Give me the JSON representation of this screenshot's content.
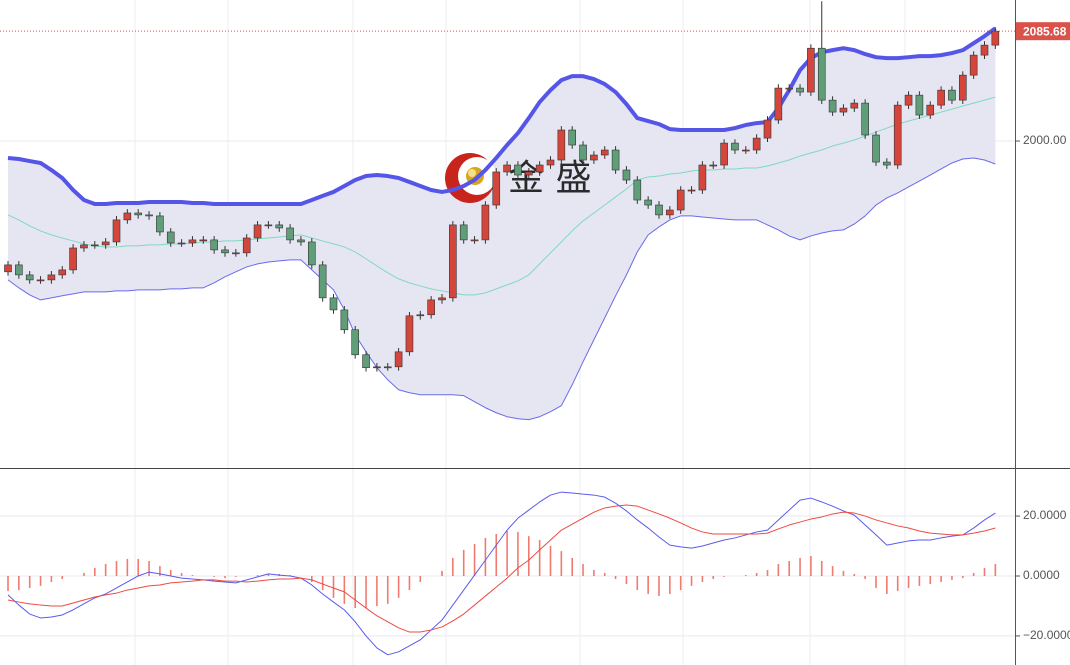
{
  "chart_data": [
    {
      "type": "candlestick",
      "open": [
        1898.0,
        1903.4,
        1895.6,
        1891.7,
        1891.7,
        1895.6,
        1899.5,
        1916.6,
        1919.0,
        1919.0,
        1921.3,
        1938.5,
        1943.9,
        1942.4,
        1941.6,
        1929.1,
        1920.5,
        1920.5,
        1922.9,
        1922.9,
        1915.1,
        1912.8,
        1912.8,
        1924.4,
        1934.6,
        1934.6,
        1932.2,
        1922.9,
        1921.3,
        1903.4,
        1877.7,
        1868.3,
        1852.8,
        1833.3,
        1823.2,
        1823.9,
        1823.9,
        1835.6,
        1863.7,
        1864.5,
        1876.1,
        1877.7,
        1934.6,
        1922.9,
        1922.9,
        1950.1,
        1975.9,
        1981.3,
        1973.5,
        1975.9,
        1981.3,
        1985.2,
        2008.6,
        1996.9,
        1985.2,
        1989.1,
        1993.0,
        1977.4,
        1969.6,
        1954.0,
        1950.1,
        1942.4,
        1946.2,
        1961.8,
        1961.8,
        1981.3,
        1981.3,
        1998.4,
        1993.0,
        1993.0,
        2002.3,
        2016.4,
        2041.3,
        2041.3,
        2038.2,
        2072.4,
        2031.9,
        2022.6,
        2025.7,
        2029.6,
        2004.7,
        1983.6,
        1981.3,
        2028.0,
        2035.8,
        2020.3,
        2028.0,
        2039.7,
        2031.9,
        2051.4,
        2067.0,
        2074.8
      ],
      "high": [
        1906.4,
        1906.4,
        1898.6,
        1894.7,
        1898.6,
        1902.5,
        1919.6,
        1922.0,
        1922.0,
        1924.3,
        1941.5,
        1946.9,
        1946.9,
        1945.4,
        1944.6,
        1932.1,
        1923.5,
        1925.9,
        1925.9,
        1925.9,
        1918.1,
        1915.8,
        1927.4,
        1937.6,
        1937.6,
        1937.6,
        1935.2,
        1925.9,
        1924.3,
        1906.4,
        1880.7,
        1871.3,
        1855.8,
        1836.3,
        1826.9,
        1826.9,
        1838.6,
        1866.7,
        1867.5,
        1879.1,
        1880.7,
        1937.6,
        1937.6,
        1925.9,
        1953.1,
        1978.9,
        1984.3,
        1984.3,
        1978.9,
        1984.3,
        1988.2,
        2011.6,
        2011.6,
        1999.9,
        1992.1,
        1996.0,
        1996.0,
        1980.4,
        1972.6,
        1957.0,
        1953.1,
        1949.2,
        1964.8,
        1964.8,
        1984.3,
        1984.3,
        2001.4,
        2001.4,
        1996.0,
        2005.3,
        2019.4,
        2044.3,
        2044.3,
        2044.3,
        2075.4,
        2109.0,
        2034.9,
        2028.7,
        2032.6,
        2032.6,
        2007.7,
        1986.6,
        2031.0,
        2038.8,
        2038.8,
        2031.0,
        2042.7,
        2042.7,
        2054.4,
        2070.0,
        2077.8,
        2088.7
      ],
      "low": [
        1895.0,
        1892.6,
        1888.7,
        1888.7,
        1888.7,
        1892.6,
        1896.5,
        1913.6,
        1916.0,
        1916.0,
        1918.3,
        1935.5,
        1939.4,
        1938.6,
        1926.1,
        1917.5,
        1917.5,
        1917.5,
        1919.9,
        1912.1,
        1909.8,
        1909.8,
        1909.8,
        1921.4,
        1931.6,
        1929.2,
        1919.9,
        1918.3,
        1900.4,
        1874.7,
        1865.3,
        1849.8,
        1830.3,
        1820.2,
        1820.2,
        1820.9,
        1820.9,
        1832.6,
        1860.7,
        1861.5,
        1873.1,
        1874.7,
        1919.9,
        1919.9,
        1919.9,
        1947.1,
        1972.9,
        1970.5,
        1970.5,
        1972.9,
        1978.3,
        1982.2,
        1993.9,
        1982.2,
        1982.2,
        1986.1,
        1974.4,
        1966.6,
        1951.0,
        1947.1,
        1939.4,
        1939.4,
        1943.2,
        1958.8,
        1958.8,
        1978.3,
        1978.3,
        1990.0,
        1990.0,
        1990.0,
        1999.3,
        2013.4,
        2038.3,
        2035.2,
        2035.2,
        2028.9,
        2019.6,
        2019.6,
        2022.7,
        2001.7,
        1980.6,
        1978.3,
        1978.3,
        2025.0,
        2017.3,
        2017.3,
        2025.0,
        2028.9,
        2028.9,
        2048.4,
        2064.0,
        2071.8
      ],
      "close": [
        1903.4,
        1895.6,
        1891.7,
        1891.7,
        1895.6,
        1899.5,
        1916.6,
        1919.0,
        1919.0,
        1921.3,
        1938.5,
        1943.9,
        1942.4,
        1941.6,
        1929.1,
        1920.5,
        1920.5,
        1922.9,
        1922.9,
        1915.1,
        1912.8,
        1912.8,
        1924.4,
        1934.6,
        1934.6,
        1932.2,
        1922.9,
        1921.3,
        1903.4,
        1877.7,
        1868.3,
        1852.8,
        1833.3,
        1823.2,
        1823.9,
        1823.9,
        1835.6,
        1863.7,
        1864.5,
        1876.1,
        1877.7,
        1934.6,
        1922.9,
        1922.9,
        1950.1,
        1975.9,
        1981.3,
        1973.5,
        1975.9,
        1981.3,
        1985.2,
        2008.6,
        1996.9,
        1985.2,
        1989.1,
        1993.0,
        1977.4,
        1969.6,
        1954.0,
        1950.1,
        1942.4,
        1946.2,
        1961.8,
        1961.8,
        1981.3,
        1981.3,
        1998.4,
        1993.0,
        1993.0,
        2002.3,
        2016.4,
        2041.3,
        2041.3,
        2038.2,
        2072.4,
        2031.9,
        2022.6,
        2025.7,
        2029.6,
        2004.7,
        1983.6,
        1981.3,
        2028.0,
        2035.8,
        2020.3,
        2028.0,
        2039.7,
        2031.9,
        2051.4,
        2067.0,
        2074.8,
        2085.68
      ],
      "up_color": "#d4463c",
      "down_color": "#5f9e78",
      "overlays": [
        {
          "color": "#5555e8",
          "width": 4,
          "values": [
            1986.8,
            1986.0,
            1984.4,
            1982.9,
            1977.4,
            1971.2,
            1961.8,
            1954.0,
            1950.9,
            1950.9,
            1951.7,
            1951.7,
            1951.7,
            1952.5,
            1952.5,
            1952.5,
            1952.5,
            1951.7,
            1951.7,
            1950.9,
            1950.9,
            1950.9,
            1950.9,
            1950.9,
            1950.9,
            1950.9,
            1950.9,
            1950.9,
            1954.0,
            1957.2,
            1960.3,
            1964.9,
            1969.6,
            1972.7,
            1973.5,
            1972.7,
            1971.2,
            1968.1,
            1964.9,
            1961.8,
            1960.3,
            1961.8,
            1964.9,
            1969.6,
            1977.4,
            1986.8,
            1996.9,
            2006.2,
            2017.9,
            2030.4,
            2039.7,
            2047.5,
            2050.6,
            2050.6,
            2048.3,
            2044.4,
            2038.2,
            2028.8,
            2017.9,
            2015.6,
            2013.2,
            2009.3,
            2008.6,
            2008.6,
            2008.6,
            2008.6,
            2008.6,
            2010.1,
            2012.5,
            2014.0,
            2014.8,
            2025.7,
            2039.7,
            2055.3,
            2064.7,
            2069.3,
            2070.9,
            2072.4,
            2070.9,
            2067.8,
            2065.4,
            2064.7,
            2064.7,
            2065.4,
            2066.2,
            2066.2,
            2067.0,
            2068.6,
            2070.9,
            2076.3,
            2081.8,
            2088.0
          ]
        },
        {
          "color": "#7fd8c2",
          "width": 1,
          "values": [
            1942.4,
            1938.5,
            1933.8,
            1929.9,
            1926.8,
            1924.4,
            1922.1,
            1919.8,
            1918.2,
            1917.4,
            1917.4,
            1918.2,
            1918.2,
            1919.0,
            1919.0,
            1919.8,
            1919.8,
            1920.5,
            1921.3,
            1921.3,
            1922.1,
            1922.1,
            1922.9,
            1923.7,
            1924.4,
            1925.2,
            1926.0,
            1926.8,
            1924.4,
            1922.1,
            1919.8,
            1917.4,
            1913.5,
            1908.1,
            1902.6,
            1897.2,
            1892.5,
            1889.4,
            1887.0,
            1884.7,
            1883.1,
            1881.6,
            1880.0,
            1880.0,
            1881.6,
            1884.7,
            1887.8,
            1890.9,
            1895.6,
            1904.2,
            1912.8,
            1921.3,
            1929.9,
            1937.7,
            1943.9,
            1950.1,
            1956.4,
            1962.6,
            1969.6,
            1972.0,
            1972.7,
            1974.3,
            1975.1,
            1976.6,
            1977.4,
            1977.4,
            1978.2,
            1978.2,
            1979.0,
            1979.0,
            1980.5,
            1982.9,
            1985.2,
            1988.3,
            1990.7,
            1993.0,
            1996.1,
            1998.4,
            2000.8,
            2003.9,
            2007.0,
            2010.1,
            2013.2,
            2015.6,
            2017.9,
            2020.3,
            2022.6,
            2024.9,
            2027.3,
            2029.6,
            2031.9,
            2034.3
          ]
        },
        {
          "color": "#6a6aec",
          "width": 1,
          "values": [
            1891.7,
            1885.5,
            1880.0,
            1876.1,
            1877.7,
            1879.3,
            1880.8,
            1882.4,
            1882.4,
            1882.4,
            1883.1,
            1883.1,
            1883.9,
            1883.9,
            1883.9,
            1884.7,
            1884.7,
            1885.5,
            1885.5,
            1889.4,
            1894.1,
            1898.0,
            1901.8,
            1904.2,
            1905.7,
            1906.5,
            1907.3,
            1907.3,
            1899.5,
            1891.7,
            1883.9,
            1868.3,
            1848.9,
            1835.6,
            1823.2,
            1813.8,
            1806.0,
            1803.7,
            1802.1,
            1802.1,
            1802.1,
            1802.1,
            1801.4,
            1796.7,
            1792.0,
            1788.1,
            1785.0,
            1783.4,
            1782.7,
            1785.0,
            1788.9,
            1793.6,
            1809.9,
            1827.8,
            1845.0,
            1862.1,
            1879.3,
            1895.6,
            1913.5,
            1926.8,
            1933.0,
            1938.5,
            1941.6,
            1941.6,
            1940.8,
            1940.0,
            1939.2,
            1938.5,
            1938.5,
            1938.5,
            1934.6,
            1930.7,
            1926.0,
            1922.9,
            1926.0,
            1928.3,
            1929.9,
            1930.7,
            1935.3,
            1941.6,
            1950.1,
            1955.6,
            1959.5,
            1964.2,
            1968.8,
            1973.5,
            1978.2,
            1982.9,
            1986.0,
            1986.8,
            1985.2,
            1982.1
          ]
        }
      ],
      "band_fill": "#e6e6f3",
      "last_price_color": "#d9534a",
      "watermark": "金 盛",
      "ylim": [
        1745,
        2110
      ],
      "yticks": [
        {
          "value": 2000,
          "label": "2000.00"
        }
      ],
      "grid": true
    },
    {
      "type": "macd",
      "histogram": {
        "color": "#f07a70",
        "values": [
          -5.0,
          -4.7,
          -4.0,
          -3.3,
          -2.0,
          -1.0,
          0.0,
          1.0,
          2.7,
          4.0,
          5.0,
          5.7,
          5.7,
          5.0,
          3.3,
          2.0,
          1.0,
          0.3,
          0.0,
          -0.3,
          -0.7,
          -0.3,
          0.0,
          0.3,
          0.7,
          0.7,
          0.3,
          0.0,
          -2.0,
          -4.7,
          -7.3,
          -9.3,
          -10.7,
          -10.7,
          -10.0,
          -9.3,
          -7.3,
          -4.7,
          -2.0,
          0.0,
          1.7,
          6.0,
          8.7,
          10.7,
          12.7,
          14.0,
          15.0,
          14.7,
          13.3,
          12.0,
          10.0,
          8.3,
          6.0,
          4.0,
          2.0,
          1.0,
          -1.0,
          -2.7,
          -4.7,
          -6.0,
          -6.7,
          -6.0,
          -4.7,
          -3.3,
          -2.0,
          -1.0,
          -0.3,
          0.0,
          0.3,
          1.0,
          2.0,
          4.0,
          5.0,
          6.0,
          6.7,
          5.0,
          3.3,
          1.7,
          0.7,
          -1.0,
          -4.0,
          -6.0,
          -5.0,
          -4.0,
          -3.3,
          -2.7,
          -2.0,
          -1.3,
          -0.7,
          1.0,
          2.7,
          4.0
        ]
      },
      "series": [
        {
          "color": "#5a5aee",
          "values": [
            -6.3,
            -9.7,
            -12.7,
            -14.0,
            -13.7,
            -13.0,
            -11.3,
            -9.3,
            -7.3,
            -6.0,
            -4.0,
            -2.0,
            0.0,
            1.3,
            0.7,
            0.0,
            -0.7,
            -1.0,
            -1.3,
            -1.7,
            -2.0,
            -2.3,
            -1.3,
            -0.3,
            0.7,
            0.3,
            0.0,
            -0.7,
            -3.0,
            -6.0,
            -8.7,
            -11.3,
            -15.3,
            -20.0,
            -24.0,
            -26.3,
            -25.3,
            -23.3,
            -21.3,
            -18.0,
            -14.7,
            -9.7,
            -4.7,
            0.3,
            5.3,
            10.3,
            15.3,
            19.3,
            22.0,
            24.7,
            27.0,
            28.0,
            27.7,
            27.3,
            27.0,
            26.3,
            24.3,
            21.7,
            18.7,
            16.0,
            13.0,
            10.3,
            9.7,
            9.3,
            10.0,
            11.0,
            12.0,
            12.7,
            13.7,
            14.7,
            15.3,
            18.7,
            22.0,
            25.3,
            26.0,
            24.7,
            23.3,
            21.7,
            20.3,
            17.0,
            13.7,
            10.3,
            11.0,
            11.7,
            12.0,
            12.0,
            12.7,
            13.3,
            13.7,
            16.0,
            18.7,
            21.0
          ]
        },
        {
          "color": "#ee4a40",
          "values": [
            -8.0,
            -8.7,
            -9.3,
            -9.7,
            -10.0,
            -10.0,
            -9.0,
            -8.0,
            -7.0,
            -6.3,
            -5.7,
            -4.7,
            -4.0,
            -3.3,
            -3.0,
            -2.3,
            -2.0,
            -1.7,
            -1.3,
            -1.3,
            -1.7,
            -1.7,
            -2.0,
            -1.7,
            -1.3,
            -1.0,
            -1.0,
            -0.7,
            -1.3,
            -2.7,
            -4.0,
            -5.3,
            -8.0,
            -10.7,
            -13.3,
            -15.3,
            -17.3,
            -18.7,
            -18.7,
            -18.0,
            -17.0,
            -15.0,
            -12.7,
            -9.7,
            -6.7,
            -3.7,
            -0.7,
            2.7,
            5.3,
            8.7,
            12.0,
            15.3,
            17.3,
            19.3,
            21.3,
            22.7,
            23.3,
            23.7,
            23.3,
            22.0,
            20.7,
            19.3,
            17.7,
            16.0,
            14.7,
            14.0,
            14.0,
            14.0,
            14.0,
            14.0,
            14.3,
            15.7,
            17.0,
            18.0,
            19.0,
            19.7,
            20.7,
            21.3,
            21.0,
            20.0,
            18.7,
            17.7,
            16.7,
            16.0,
            15.0,
            14.3,
            14.0,
            13.7,
            13.7,
            14.3,
            15.0,
            16.0
          ]
        }
      ],
      "ylim": [
        -29.7,
        35.7
      ],
      "yticks": [
        {
          "value": 20,
          "label": "20.0000"
        },
        {
          "value": 0,
          "label": "0.0000"
        },
        {
          "value": -20,
          "label": "−20.0000"
        }
      ],
      "grid": true
    }
  ]
}
